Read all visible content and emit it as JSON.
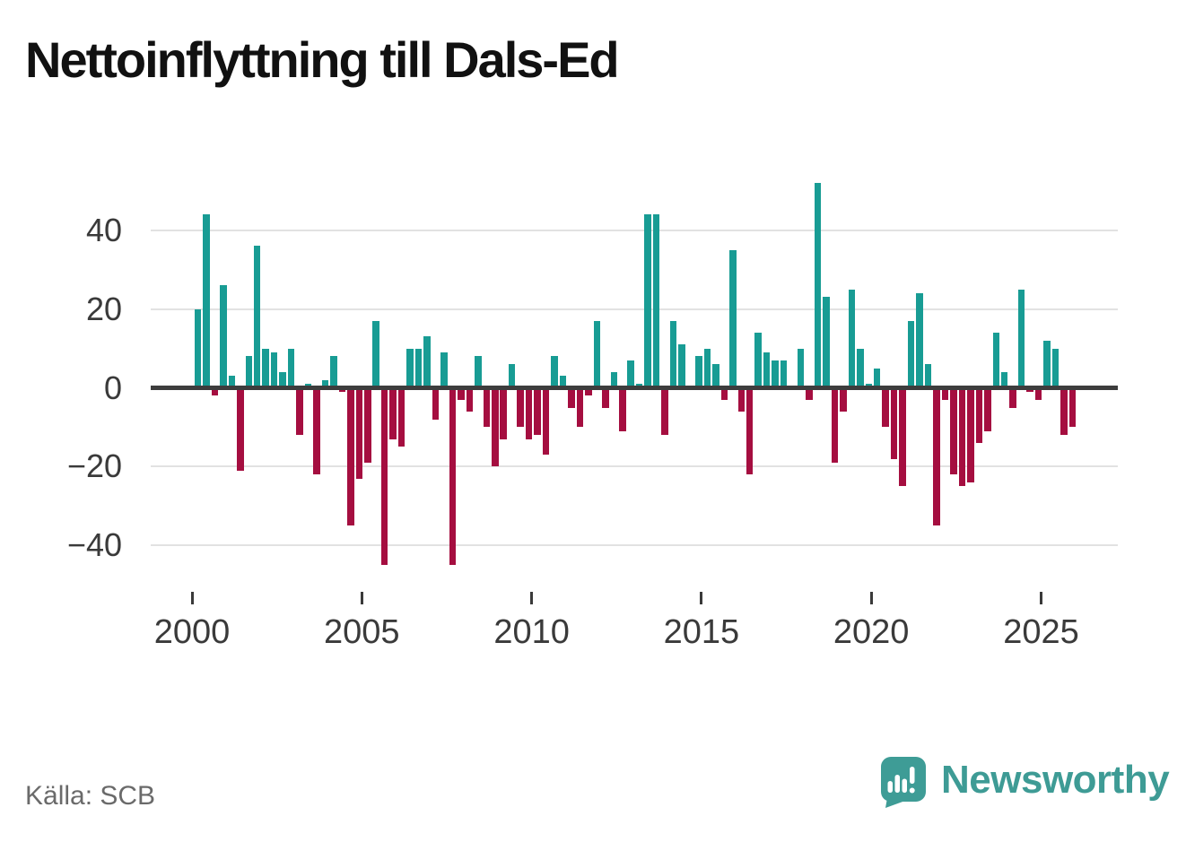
{
  "title": "Nettoinflyttning till Dals-Ed",
  "source_label": "Källa: SCB",
  "brand": {
    "wordmark": "Newsworthy",
    "logo_icon": "speech-bubble-bar-chart-icon"
  },
  "colors": {
    "positive_bar": "#189c94",
    "negative_bar": "#a50e40",
    "brand_teal": "#3e9b95",
    "axis_text": "#3a3a3a",
    "grid_line": "#e2e2e2",
    "zero_line": "#3d3d3d",
    "source_text": "#6a6a6a",
    "title_text": "#111111"
  },
  "chart_data": {
    "type": "bar",
    "title": "Nettoinflyttning till Dals-Ed",
    "frequency": "quarterly",
    "start_period": "2000-Q1",
    "end_period": "2025-Q4",
    "xlabel": "",
    "ylabel": "",
    "y_axis_ticks": [
      40,
      20,
      0,
      -20,
      -40
    ],
    "x_axis_tick_labels": [
      "2000",
      "2005",
      "2010",
      "2015",
      "2020",
      "2025"
    ],
    "ylim": [
      -50,
      56
    ],
    "grid": "horizontal",
    "positive_color_meaning": "net in-migration",
    "negative_color_meaning": "net out-migration",
    "values": [
      20,
      44,
      -2,
      26,
      3,
      -21,
      8,
      36,
      10,
      9,
      4,
      10,
      -12,
      1,
      -22,
      2,
      8,
      -1,
      -35,
      -23,
      -19,
      17,
      -45,
      -13,
      -15,
      10,
      10,
      13,
      -8,
      9,
      -45,
      -3,
      -6,
      8,
      -10,
      -20,
      -13,
      6,
      -10,
      -13,
      -12,
      -17,
      8,
      3,
      -5,
      -10,
      -2,
      17,
      -5,
      4,
      -11,
      7,
      1,
      44,
      44,
      -12,
      17,
      11,
      0,
      8,
      10,
      6,
      -3,
      35,
      -6,
      -22,
      14,
      9,
      7,
      7,
      0,
      10,
      -3,
      52,
      23,
      -19,
      -6,
      25,
      10,
      1,
      5,
      -10,
      -18,
      -25,
      17,
      24,
      6,
      -35,
      -3,
      -22,
      -25,
      -24,
      -14,
      -11,
      14,
      4,
      -5,
      25,
      -1,
      -3,
      12,
      10,
      -12,
      -10
    ]
  }
}
